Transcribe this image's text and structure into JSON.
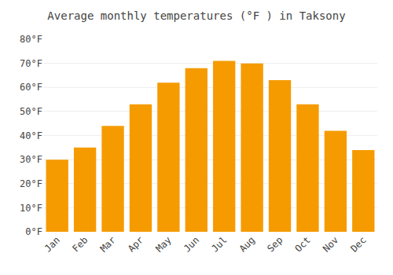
{
  "chart_data": {
    "type": "bar",
    "title": "Average monthly temperatures (°F ) in Taksony",
    "categories": [
      "Jan",
      "Feb",
      "Mar",
      "Apr",
      "May",
      "Jun",
      "Jul",
      "Aug",
      "Sep",
      "Oct",
      "Nov",
      "Dec"
    ],
    "values": [
      30,
      35,
      44,
      53,
      62,
      68,
      71,
      70,
      63,
      53,
      42,
      34
    ],
    "color": "#F59B00",
    "ylim": [
      0,
      80
    ],
    "yticks": [
      {
        "value": 0,
        "label": "0°F"
      },
      {
        "value": 10,
        "label": "10°F"
      },
      {
        "value": 20,
        "label": "20°F"
      },
      {
        "value": 30,
        "label": "30°F"
      },
      {
        "value": 40,
        "label": "40°F"
      },
      {
        "value": 50,
        "label": "50°F"
      },
      {
        "value": 60,
        "label": "60°F"
      },
      {
        "value": 70,
        "label": "70°F"
      },
      {
        "value": 80,
        "label": "80°F"
      }
    ],
    "grid": true
  }
}
